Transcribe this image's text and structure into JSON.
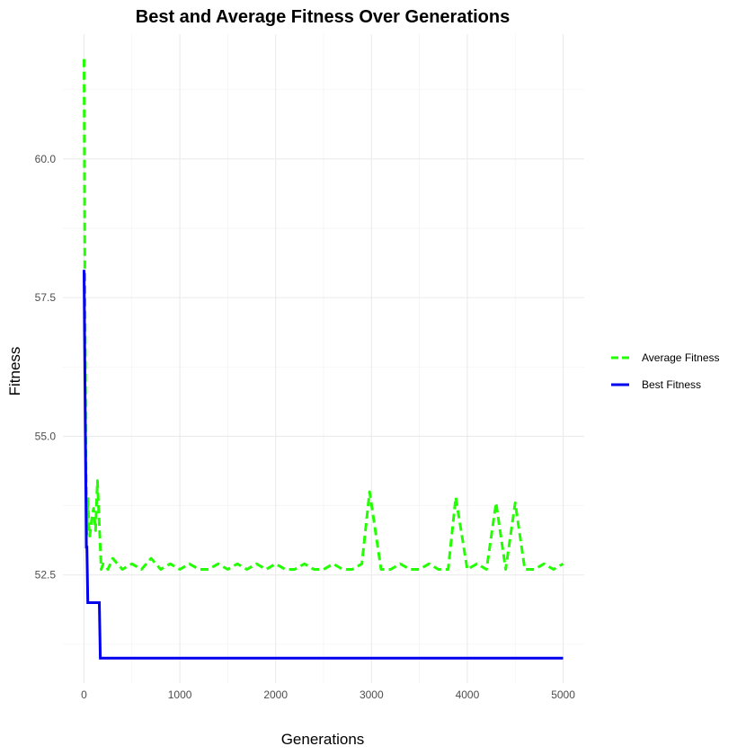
{
  "chart_data": {
    "type": "line",
    "title": "Best and Average Fitness Over Generations",
    "xlabel": "Generations",
    "ylabel": "Fitness",
    "xlim": [
      -220,
      5220
    ],
    "ylim": [
      50.55,
      62.25
    ],
    "x_ticks": [
      0,
      1000,
      2000,
      3000,
      4000,
      5000
    ],
    "x_tick_labels": [
      "0",
      "1000",
      "2000",
      "3000",
      "4000",
      "5000"
    ],
    "y_ticks": [
      52.5,
      55.0,
      57.5,
      60.0
    ],
    "y_tick_labels": [
      "52.5",
      "55.0",
      "57.5",
      "60.0"
    ],
    "grid": true,
    "legend_position": "right",
    "series": [
      {
        "name": "Average Fitness",
        "color": "#22ff00",
        "linestyle": "dashed",
        "x": [
          0,
          10,
          20,
          30,
          40,
          50,
          60,
          80,
          100,
          120,
          140,
          160,
          180,
          200,
          250,
          300,
          400,
          500,
          600,
          700,
          800,
          900,
          1000,
          1100,
          1200,
          1300,
          1400,
          1500,
          1600,
          1700,
          1800,
          1900,
          2000,
          2100,
          2200,
          2300,
          2400,
          2500,
          2600,
          2700,
          2800,
          2900,
          2980,
          3100,
          3200,
          3300,
          3400,
          3500,
          3600,
          3700,
          3800,
          3880,
          4000,
          4100,
          4200,
          4300,
          4400,
          4500,
          4600,
          4700,
          4800,
          4900,
          5000
        ],
        "y": [
          61.8,
          57.5,
          54.5,
          53.2,
          53.9,
          53.4,
          53.2,
          53.5,
          53.7,
          53.3,
          54.2,
          53.4,
          52.6,
          52.7,
          52.6,
          52.8,
          52.6,
          52.7,
          52.6,
          52.8,
          52.6,
          52.7,
          52.6,
          52.7,
          52.6,
          52.6,
          52.7,
          52.6,
          52.7,
          52.6,
          52.7,
          52.6,
          52.7,
          52.6,
          52.6,
          52.7,
          52.6,
          52.6,
          52.7,
          52.6,
          52.6,
          52.7,
          54.0,
          52.6,
          52.6,
          52.7,
          52.6,
          52.6,
          52.7,
          52.6,
          52.6,
          53.9,
          52.6,
          52.7,
          52.6,
          53.8,
          52.6,
          53.8,
          52.6,
          52.6,
          52.7,
          52.6,
          52.7
        ]
      },
      {
        "name": "Best Fitness",
        "color": "#0000ee",
        "linestyle": "solid",
        "x": [
          0,
          10,
          20,
          25,
          30,
          40,
          100,
          160,
          170,
          200,
          1000,
          2000,
          3000,
          4000,
          5000
        ],
        "y": [
          58.0,
          56.0,
          54.0,
          53.0,
          53.0,
          52.0,
          52.0,
          52.0,
          51.0,
          51.0,
          51.0,
          51.0,
          51.0,
          51.0,
          51.0
        ]
      }
    ]
  }
}
